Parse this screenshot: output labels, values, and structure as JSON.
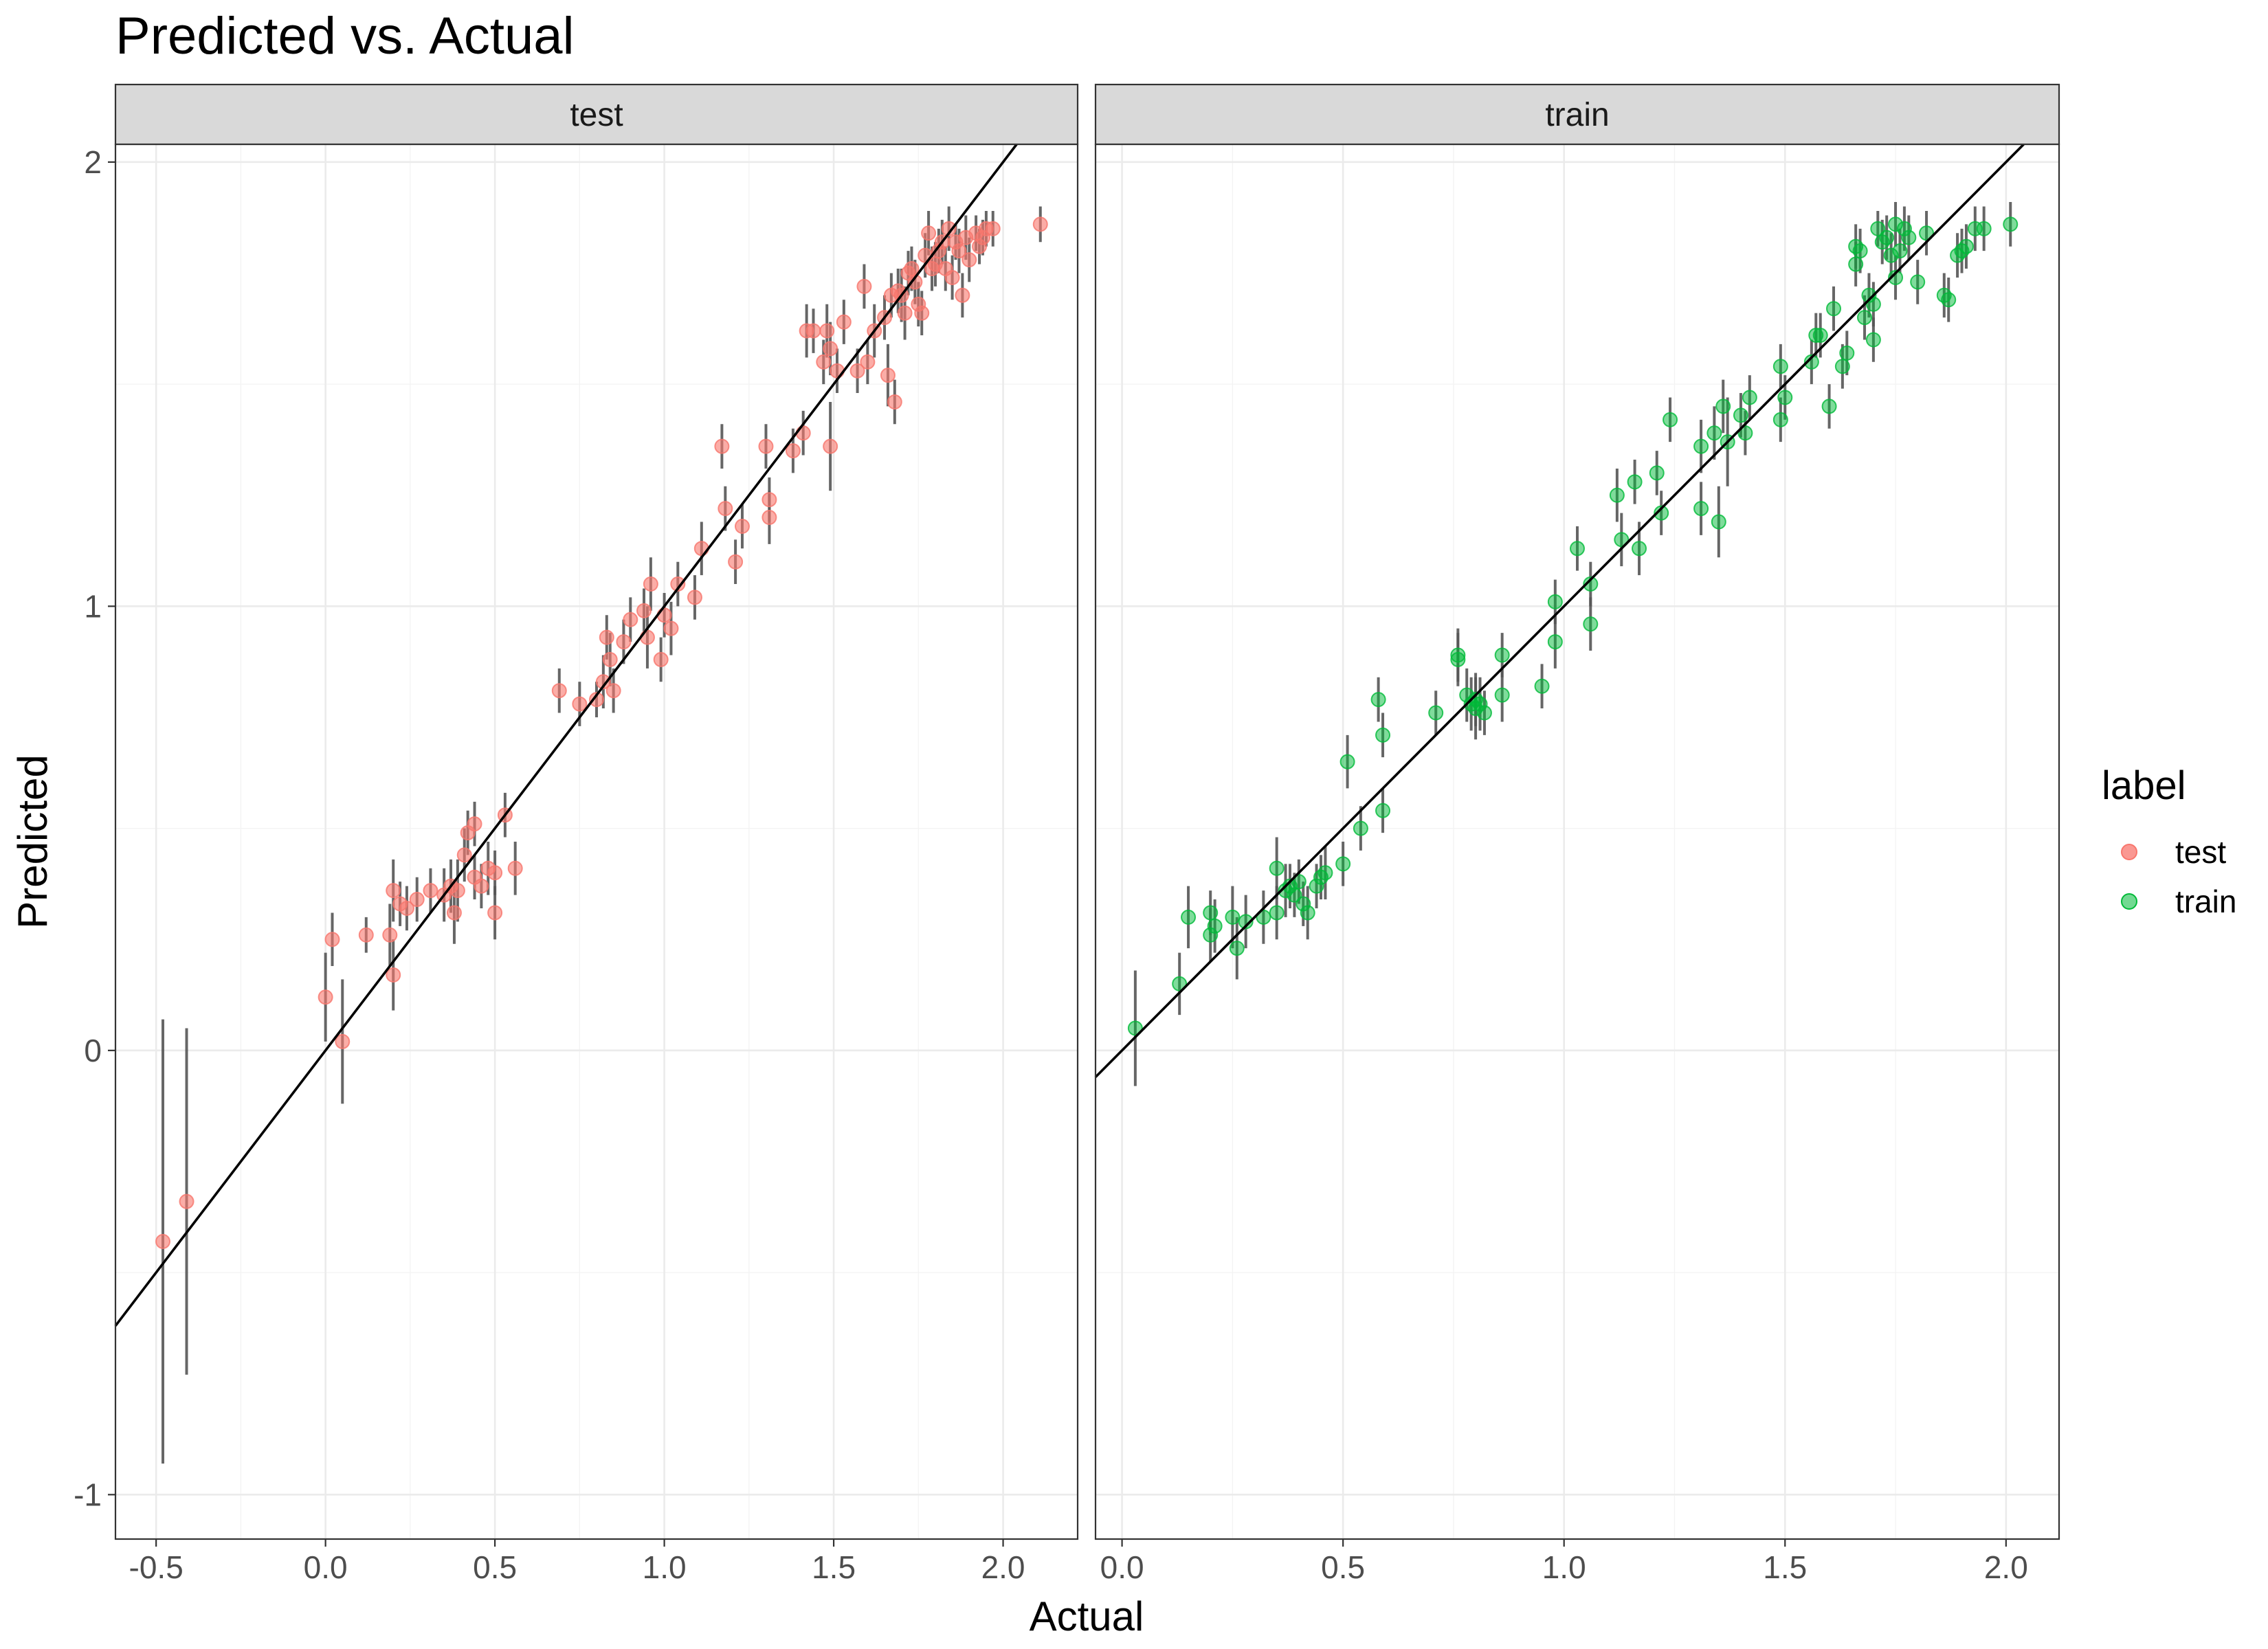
{
  "chart_data": {
    "type": "scatter",
    "title": "Predicted vs. Actual",
    "xlabel": "Actual",
    "ylabel": "Predicted",
    "legend": {
      "title": "label",
      "position": "right",
      "entries": [
        {
          "label": "test",
          "color": "#F8766D"
        },
        {
          "label": "train",
          "color": "#00BA38"
        }
      ]
    },
    "facets": [
      {
        "label": "test",
        "color": "#F8766D",
        "xlim": [
          -0.62,
          2.22
        ],
        "ylim": [
          -1.1,
          2.04
        ],
        "xticks": [
          -0.5,
          0.0,
          0.5,
          1.0,
          1.5,
          2.0
        ],
        "xtick_labels": [
          "-0.5",
          "0.0",
          "0.5",
          "1.0",
          "1.5",
          "2.0"
        ],
        "fit_line": {
          "slope": 1.0,
          "intercept": 0.0
        },
        "points": [
          [
            -0.48,
            -0.43,
            0.5
          ],
          [
            -0.41,
            -0.34,
            0.39
          ],
          [
            0.0,
            0.12,
            0.1
          ],
          [
            0.02,
            0.25,
            0.06
          ],
          [
            0.05,
            0.02,
            0.14
          ],
          [
            0.12,
            0.26,
            0.04
          ],
          [
            0.19,
            0.26,
            0.07
          ],
          [
            0.2,
            0.17,
            0.08
          ],
          [
            0.2,
            0.36,
            0.07
          ],
          [
            0.22,
            0.33,
            0.05
          ],
          [
            0.24,
            0.32,
            0.05
          ],
          [
            0.27,
            0.34,
            0.05
          ],
          [
            0.31,
            0.36,
            0.05
          ],
          [
            0.35,
            0.35,
            0.06
          ],
          [
            0.37,
            0.37,
            0.06
          ],
          [
            0.38,
            0.31,
            0.07
          ],
          [
            0.39,
            0.36,
            0.07
          ],
          [
            0.41,
            0.44,
            0.06
          ],
          [
            0.42,
            0.49,
            0.05
          ],
          [
            0.44,
            0.51,
            0.05
          ],
          [
            0.44,
            0.39,
            0.05
          ],
          [
            0.46,
            0.37,
            0.05
          ],
          [
            0.48,
            0.41,
            0.06
          ],
          [
            0.5,
            0.31,
            0.06
          ],
          [
            0.5,
            0.4,
            0.05
          ],
          [
            0.53,
            0.53,
            0.05
          ],
          [
            0.56,
            0.41,
            0.06
          ],
          [
            0.69,
            0.81,
            0.05
          ],
          [
            0.75,
            0.78,
            0.05
          ],
          [
            0.8,
            0.79,
            0.04
          ],
          [
            0.82,
            0.83,
            0.06
          ],
          [
            0.83,
            0.93,
            0.05
          ],
          [
            0.84,
            0.88,
            0.06
          ],
          [
            0.85,
            0.81,
            0.05
          ],
          [
            0.88,
            0.92,
            0.05
          ],
          [
            0.9,
            0.97,
            0.05
          ],
          [
            0.94,
            0.99,
            0.05
          ],
          [
            0.95,
            0.93,
            0.07
          ],
          [
            0.96,
            1.05,
            0.06
          ],
          [
            0.99,
            0.88,
            0.05
          ],
          [
            1.0,
            0.98,
            0.05
          ],
          [
            1.02,
            0.95,
            0.06
          ],
          [
            1.04,
            1.05,
            0.05
          ],
          [
            1.09,
            1.02,
            0.05
          ],
          [
            1.11,
            1.13,
            0.06
          ],
          [
            1.17,
            1.36,
            0.05
          ],
          [
            1.18,
            1.22,
            0.05
          ],
          [
            1.21,
            1.1,
            0.05
          ],
          [
            1.23,
            1.18,
            0.05
          ],
          [
            1.3,
            1.36,
            0.05
          ],
          [
            1.31,
            1.24,
            0.05
          ],
          [
            1.31,
            1.2,
            0.06
          ],
          [
            1.38,
            1.35,
            0.05
          ],
          [
            1.41,
            1.39,
            0.05
          ],
          [
            1.42,
            1.62,
            0.06
          ],
          [
            1.44,
            1.62,
            0.05
          ],
          [
            1.47,
            1.55,
            0.05
          ],
          [
            1.48,
            1.62,
            0.06
          ],
          [
            1.49,
            1.58,
            0.06
          ],
          [
            1.49,
            1.36,
            0.1
          ],
          [
            1.51,
            1.53,
            0.05
          ],
          [
            1.53,
            1.64,
            0.05
          ],
          [
            1.57,
            1.53,
            0.05
          ],
          [
            1.59,
            1.72,
            0.05
          ],
          [
            1.6,
            1.55,
            0.05
          ],
          [
            1.62,
            1.62,
            0.06
          ],
          [
            1.65,
            1.65,
            0.05
          ],
          [
            1.66,
            1.52,
            0.07
          ],
          [
            1.67,
            1.7,
            0.05
          ],
          [
            1.68,
            1.46,
            0.05
          ],
          [
            1.69,
            1.71,
            0.05
          ],
          [
            1.7,
            1.7,
            0.06
          ],
          [
            1.71,
            1.66,
            0.06
          ],
          [
            1.72,
            1.75,
            0.05
          ],
          [
            1.73,
            1.76,
            0.05
          ],
          [
            1.74,
            1.73,
            0.05
          ],
          [
            1.75,
            1.68,
            0.05
          ],
          [
            1.76,
            1.66,
            0.05
          ],
          [
            1.77,
            1.79,
            0.05
          ],
          [
            1.78,
            1.84,
            0.05
          ],
          [
            1.79,
            1.76,
            0.05
          ],
          [
            1.8,
            1.77,
            0.05
          ],
          [
            1.81,
            1.8,
            0.05
          ],
          [
            1.82,
            1.82,
            0.05
          ],
          [
            1.83,
            1.76,
            0.05
          ],
          [
            1.84,
            1.85,
            0.05
          ],
          [
            1.85,
            1.74,
            0.05
          ],
          [
            1.86,
            1.82,
            0.04
          ],
          [
            1.87,
            1.8,
            0.05
          ],
          [
            1.88,
            1.7,
            0.05
          ],
          [
            1.89,
            1.83,
            0.05
          ],
          [
            1.9,
            1.78,
            0.05
          ],
          [
            1.92,
            1.84,
            0.04
          ],
          [
            1.93,
            1.81,
            0.04
          ],
          [
            1.94,
            1.83,
            0.04
          ],
          [
            1.95,
            1.85,
            0.04
          ],
          [
            1.97,
            1.85,
            0.04
          ],
          [
            2.11,
            1.86,
            0.04
          ]
        ]
      },
      {
        "label": "train",
        "color": "#00BA38",
        "xlim": [
          -0.06,
          2.12
        ],
        "ylim": [
          -1.1,
          2.04
        ],
        "xticks": [
          0.0,
          0.5,
          1.0,
          1.5,
          2.0
        ],
        "xtick_labels": [
          "0.0",
          "0.5",
          "1.0",
          "1.5",
          "2.0"
        ],
        "fit_line": {
          "slope": 1.0,
          "intercept": 0.0
        },
        "points": [
          [
            0.03,
            0.05,
            0.13
          ],
          [
            0.13,
            0.15,
            0.07
          ],
          [
            0.15,
            0.3,
            0.07
          ],
          [
            0.2,
            0.26,
            0.06
          ],
          [
            0.2,
            0.31,
            0.05
          ],
          [
            0.21,
            0.28,
            0.06
          ],
          [
            0.25,
            0.3,
            0.07
          ],
          [
            0.26,
            0.23,
            0.07
          ],
          [
            0.28,
            0.29,
            0.06
          ],
          [
            0.32,
            0.3,
            0.06
          ],
          [
            0.35,
            0.41,
            0.07
          ],
          [
            0.35,
            0.31,
            0.06
          ],
          [
            0.37,
            0.36,
            0.06
          ],
          [
            0.38,
            0.37,
            0.05
          ],
          [
            0.39,
            0.35,
            0.05
          ],
          [
            0.4,
            0.38,
            0.05
          ],
          [
            0.41,
            0.33,
            0.05
          ],
          [
            0.42,
            0.31,
            0.06
          ],
          [
            0.44,
            0.37,
            0.05
          ],
          [
            0.45,
            0.39,
            0.05
          ],
          [
            0.46,
            0.4,
            0.06
          ],
          [
            0.5,
            0.42,
            0.05
          ],
          [
            0.51,
            0.65,
            0.06
          ],
          [
            0.54,
            0.5,
            0.05
          ],
          [
            0.58,
            0.79,
            0.05
          ],
          [
            0.59,
            0.71,
            0.05
          ],
          [
            0.59,
            0.54,
            0.05
          ],
          [
            0.71,
            0.76,
            0.05
          ],
          [
            0.76,
            0.88,
            0.06
          ],
          [
            0.76,
            0.89,
            0.06
          ],
          [
            0.78,
            0.8,
            0.06
          ],
          [
            0.79,
            0.78,
            0.06
          ],
          [
            0.8,
            0.79,
            0.06
          ],
          [
            0.8,
            0.77,
            0.07
          ],
          [
            0.81,
            0.78,
            0.06
          ],
          [
            0.82,
            0.76,
            0.05
          ],
          [
            0.86,
            0.8,
            0.06
          ],
          [
            0.86,
            0.89,
            0.05
          ],
          [
            0.95,
            0.82,
            0.05
          ],
          [
            0.98,
            0.92,
            0.06
          ],
          [
            0.98,
            1.01,
            0.05
          ],
          [
            1.03,
            1.13,
            0.05
          ],
          [
            1.06,
            1.05,
            0.05
          ],
          [
            1.06,
            0.96,
            0.06
          ],
          [
            1.12,
            1.25,
            0.06
          ],
          [
            1.13,
            1.15,
            0.06
          ],
          [
            1.16,
            1.28,
            0.05
          ],
          [
            1.17,
            1.13,
            0.06
          ],
          [
            1.21,
            1.3,
            0.05
          ],
          [
            1.22,
            1.21,
            0.05
          ],
          [
            1.24,
            1.42,
            0.05
          ],
          [
            1.31,
            1.36,
            0.06
          ],
          [
            1.31,
            1.22,
            0.06
          ],
          [
            1.34,
            1.39,
            0.06
          ],
          [
            1.35,
            1.19,
            0.08
          ],
          [
            1.36,
            1.45,
            0.06
          ],
          [
            1.37,
            1.37,
            0.1
          ],
          [
            1.4,
            1.43,
            0.05
          ],
          [
            1.41,
            1.39,
            0.05
          ],
          [
            1.42,
            1.47,
            0.05
          ],
          [
            1.49,
            1.42,
            0.05
          ],
          [
            1.49,
            1.54,
            0.05
          ],
          [
            1.5,
            1.47,
            0.05
          ],
          [
            1.56,
            1.55,
            0.05
          ],
          [
            1.57,
            1.61,
            0.05
          ],
          [
            1.58,
            1.61,
            0.05
          ],
          [
            1.6,
            1.45,
            0.05
          ],
          [
            1.61,
            1.67,
            0.05
          ],
          [
            1.63,
            1.54,
            0.05
          ],
          [
            1.64,
            1.57,
            0.05
          ],
          [
            1.66,
            1.81,
            0.05
          ],
          [
            1.66,
            1.77,
            0.05
          ],
          [
            1.67,
            1.8,
            0.05
          ],
          [
            1.68,
            1.65,
            0.05
          ],
          [
            1.69,
            1.7,
            0.05
          ],
          [
            1.7,
            1.6,
            0.05
          ],
          [
            1.7,
            1.68,
            0.05
          ],
          [
            1.71,
            1.85,
            0.04
          ],
          [
            1.72,
            1.82,
            0.05
          ],
          [
            1.73,
            1.83,
            0.05
          ],
          [
            1.74,
            1.79,
            0.05
          ],
          [
            1.75,
            1.74,
            0.05
          ],
          [
            1.75,
            1.86,
            0.05
          ],
          [
            1.76,
            1.8,
            0.05
          ],
          [
            1.77,
            1.85,
            0.05
          ],
          [
            1.78,
            1.83,
            0.05
          ],
          [
            1.8,
            1.73,
            0.05
          ],
          [
            1.82,
            1.84,
            0.05
          ],
          [
            1.86,
            1.7,
            0.05
          ],
          [
            1.87,
            1.69,
            0.05
          ],
          [
            1.89,
            1.79,
            0.05
          ],
          [
            1.9,
            1.8,
            0.05
          ],
          [
            1.91,
            1.81,
            0.05
          ],
          [
            1.93,
            1.85,
            0.05
          ],
          [
            1.95,
            1.85,
            0.05
          ],
          [
            2.01,
            1.86,
            0.05
          ]
        ]
      }
    ],
    "yticks": [
      -1,
      0,
      1,
      2
    ],
    "ytick_labels": [
      "-1",
      "0",
      "1",
      "2"
    ],
    "grid": true
  }
}
